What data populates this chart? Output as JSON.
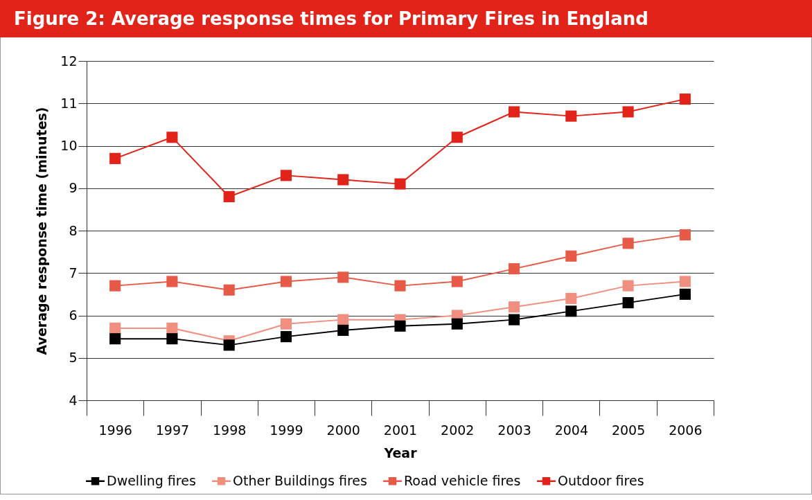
{
  "chart_data": {
    "type": "line",
    "title": "Figure 2: Average response times for Primary Fires in England",
    "xlabel": "Year",
    "ylabel": "Average response time (minutes)",
    "categories": [
      "1996",
      "1997",
      "1998",
      "1999",
      "2000",
      "2001",
      "2002",
      "2003",
      "2004",
      "2005",
      "2006"
    ],
    "series": [
      {
        "name": "Dwelling fires",
        "color": "#000000",
        "values": [
          5.45,
          5.45,
          5.3,
          5.5,
          5.65,
          5.75,
          5.8,
          5.9,
          6.1,
          6.3,
          6.5
        ]
      },
      {
        "name": "Other Buildings fires",
        "color": "#f08f80",
        "values": [
          5.7,
          5.7,
          5.4,
          5.8,
          5.9,
          5.9,
          6.0,
          6.2,
          6.4,
          6.7,
          6.8
        ]
      },
      {
        "name": "Road vehicle fires",
        "color": "#e85a48",
        "values": [
          6.7,
          6.8,
          6.6,
          6.8,
          6.9,
          6.7,
          6.8,
          7.1,
          7.4,
          7.7,
          7.9
        ]
      },
      {
        "name": "Outdoor fires",
        "color": "#e2231a",
        "values": [
          9.7,
          10.2,
          8.8,
          9.3,
          9.2,
          9.1,
          10.2,
          10.8,
          10.7,
          10.8,
          11.1
        ]
      }
    ],
    "ylim": [
      4,
      12
    ],
    "yticks": [
      4,
      5,
      6,
      7,
      8,
      9,
      10,
      11,
      12
    ],
    "grid": "y",
    "legend": "bottom",
    "marker": "square",
    "line_style": "solid"
  }
}
